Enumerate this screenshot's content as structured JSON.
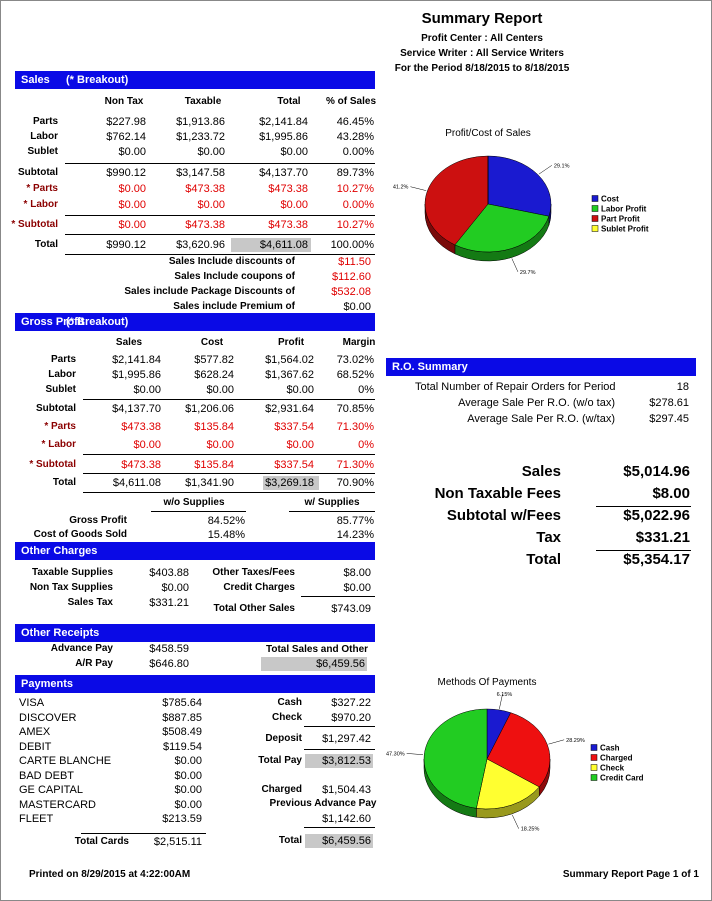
{
  "header": {
    "title": "Summary Report",
    "profit_center": "Profit Center : All Centers",
    "service_writer": "Service Writer : All Service Writers",
    "period": "For the Period 8/18/2015 to 8/18/2015"
  },
  "sales": {
    "title": "Sales",
    "breakout": "(* Breakout)",
    "columns": [
      "Non Tax",
      "Taxable",
      "Total",
      "% of Sales"
    ],
    "rows": [
      {
        "label": "Parts",
        "cells": [
          "$227.98",
          "$1,913.86",
          "$2,141.84",
          "46.45%"
        ]
      },
      {
        "label": "Labor",
        "cells": [
          "$762.14",
          "$1,233.72",
          "$1,995.86",
          "43.28%"
        ]
      },
      {
        "label": "Sublet",
        "cells": [
          "$0.00",
          "$0.00",
          "$0.00",
          "0.00%"
        ]
      },
      {
        "label": "Subtotal",
        "cells": [
          "$990.12",
          "$3,147.58",
          "$4,137.70",
          "89.73%"
        ]
      },
      {
        "label": "* Parts",
        "cells": [
          "$0.00",
          "$473.38",
          "$473.38",
          "10.27%"
        ]
      },
      {
        "label": "* Labor",
        "cells": [
          "$0.00",
          "$0.00",
          "$0.00",
          "0.00%"
        ]
      },
      {
        "label": "* Subtotal",
        "cells": [
          "$0.00",
          "$473.38",
          "$473.38",
          "10.27%"
        ]
      },
      {
        "label": "Total",
        "cells": [
          "$990.12",
          "$3,620.96",
          "$4,611.08",
          "100.00%"
        ]
      }
    ],
    "notes": [
      {
        "label": "Sales Include discounts of",
        "value": "$11.50"
      },
      {
        "label": "Sales Include coupons of",
        "value": "$112.60"
      },
      {
        "label": "Sales include Package Discounts of",
        "value": "$532.08"
      },
      {
        "label": "Sales include Premium of",
        "value": "$0.00"
      }
    ]
  },
  "gross_profit": {
    "title": "Gross Profit",
    "breakout": "(* Breakout)",
    "columns": [
      "Sales",
      "Cost",
      "Profit",
      "Margin"
    ],
    "rows": [
      {
        "label": "Parts",
        "cells": [
          "$2,141.84",
          "$577.82",
          "$1,564.02",
          "73.02%"
        ]
      },
      {
        "label": "Labor",
        "cells": [
          "$1,995.86",
          "$628.24",
          "$1,367.62",
          "68.52%"
        ]
      },
      {
        "label": "Sublet",
        "cells": [
          "$0.00",
          "$0.00",
          "$0.00",
          "0%"
        ]
      },
      {
        "label": "Subtotal",
        "cells": [
          "$4,137.70",
          "$1,206.06",
          "$2,931.64",
          "70.85%"
        ]
      },
      {
        "label": "* Parts",
        "cells": [
          "$473.38",
          "$135.84",
          "$337.54",
          "71.30%"
        ]
      },
      {
        "label": "* Labor",
        "cells": [
          "$0.00",
          "$0.00",
          "$0.00",
          "0%"
        ]
      },
      {
        "label": "* Subtotal",
        "cells": [
          "$473.38",
          "$135.84",
          "$337.54",
          "71.30%"
        ]
      },
      {
        "label": "Total",
        "cells": [
          "$4,611.08",
          "$1,341.90",
          "$3,269.18",
          "70.90%"
        ]
      }
    ],
    "supplies": {
      "columns": [
        "w/o Supplies",
        "w/ Supplies"
      ],
      "rows": [
        {
          "label": "Gross Profit",
          "cells": [
            "84.52%",
            "85.77%"
          ]
        },
        {
          "label": "Cost of Goods Sold",
          "cells": [
            "15.48%",
            "14.23%"
          ]
        }
      ]
    }
  },
  "other_charges": {
    "title": "Other Charges",
    "left": [
      {
        "label": "Taxable Supplies",
        "value": "$403.88"
      },
      {
        "label": "Non Tax Supplies",
        "value": "$0.00"
      },
      {
        "label": "Sales Tax",
        "value": "$331.21"
      }
    ],
    "right": [
      {
        "label": "Other Taxes/Fees",
        "value": "$8.00"
      },
      {
        "label": "Credit Charges",
        "value": "$0.00"
      },
      {
        "label": "Total Other Sales",
        "value": "$743.09"
      }
    ]
  },
  "other_receipts": {
    "title": "Other Receipts",
    "rows": [
      {
        "label": "Advance Pay",
        "value": "$458.59"
      },
      {
        "label": "A/R Pay",
        "value": "$646.80"
      }
    ],
    "total_label": "Total Sales and Other",
    "total": "$6,459.56"
  },
  "payments": {
    "title": "Payments",
    "cards": [
      {
        "label": "VISA",
        "value": "$785.64"
      },
      {
        "label": "DISCOVER",
        "value": "$887.85"
      },
      {
        "label": "AMEX",
        "value": "$508.49"
      },
      {
        "label": "DEBIT",
        "value": "$119.54"
      },
      {
        "label": "CARTE BLANCHE",
        "value": "$0.00"
      },
      {
        "label": "BAD DEBT",
        "value": "$0.00"
      },
      {
        "label": "GE CAPITAL",
        "value": "$0.00"
      },
      {
        "label": "MASTERCARD",
        "value": "$0.00"
      },
      {
        "label": "FLEET",
        "value": "$213.59"
      }
    ],
    "total_cards": {
      "label": "Total Cards",
      "value": "$2,515.11"
    },
    "right": [
      {
        "label": "Cash",
        "value": "$327.22"
      },
      {
        "label": "Check",
        "value": "$970.20"
      },
      {
        "label": "Deposit",
        "value": "$1,297.42"
      },
      {
        "label": "Total Pay",
        "value": "$3,812.53"
      },
      {
        "label": "Charged",
        "value": "$1,504.43"
      },
      {
        "label": "Previous Advance Pay",
        "value": "$1,142.60"
      },
      {
        "label": "Total",
        "value": "$6,459.56"
      }
    ]
  },
  "ro_summary": {
    "title": "R.O. Summary",
    "rows": [
      {
        "label": "Total Number of Repair Orders for Period",
        "value": "18"
      },
      {
        "label": "Average Sale Per R.O. (w/o tax)",
        "value": "$278.61"
      },
      {
        "label": "Average Sale Per R.O. (w/tax)",
        "value": "$297.45"
      }
    ]
  },
  "totals": [
    {
      "label": "Sales",
      "value": "$5,014.96"
    },
    {
      "label": "Non Taxable Fees",
      "value": "$8.00"
    },
    {
      "label": "Subtotal w/Fees",
      "value": "$5,022.96"
    },
    {
      "label": "Tax",
      "value": "$331.21"
    },
    {
      "label": "Total",
      "value": "$5,354.17"
    }
  ],
  "footer": {
    "printed": "Printed on 8/29/2015 at  4:22:00AM",
    "page": "Summary Report  Page 1 of 1"
  },
  "chart_data": [
    {
      "type": "pie",
      "title": "Profit/Cost of Sales",
      "categories": [
        "Cost",
        "Labor Profit",
        "Part Profit",
        "Sublet Profit"
      ],
      "values": [
        29.1,
        29.7,
        41.2,
        0
      ],
      "value_labels": [
        "29.1%",
        "29.7%",
        "41.2%",
        null
      ],
      "colors": [
        "#1a1ad0",
        "#22cc22",
        "#cc1010",
        "#ffff30"
      ]
    },
    {
      "type": "pie",
      "title": "Methods Of Payments",
      "categories": [
        "Cash",
        "Charged",
        "Check",
        "Credit Card"
      ],
      "values": [
        6.15,
        28.29,
        18.25,
        47.3
      ],
      "value_labels": [
        "6.15%",
        "28.29%",
        "18.25%",
        "47.30%"
      ],
      "colors": [
        "#1a1ad0",
        "#ee1010",
        "#ffff30",
        "#22cc22"
      ]
    }
  ]
}
